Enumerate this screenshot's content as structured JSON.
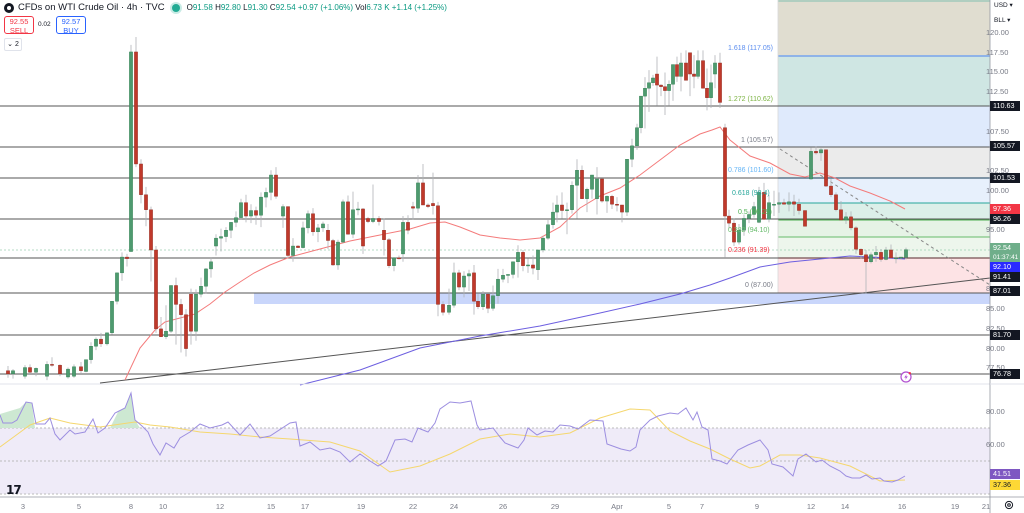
{
  "header": {
    "title": "CFDs on WTI Crude Oil · 4h · TVC",
    "open_label": "O",
    "open": "91.58",
    "high_label": "H",
    "high": "92.80",
    "low_label": "L",
    "low": "91.30",
    "close_label": "C",
    "close": "92.54",
    "change": "+0.97 (+1.06%)",
    "volume_label": "Vol",
    "volume": "6.73 K",
    "volume_change": "+1.14 (+1.25%)"
  },
  "trade": {
    "sell_price": "92.55",
    "sell_label": "SELL",
    "spread": "0.02",
    "buy_price": "92.57",
    "buy_label": "BUY",
    "indicators_collapse": "⌄ 2"
  },
  "price_axis": {
    "currency": "USD ▾",
    "unit": "BLL ▾",
    "ticks": [
      "120.00",
      "117.50",
      "115.00",
      "112.50",
      "107.50",
      "102.50",
      "100.00",
      "95.00",
      "87.50",
      "85.00",
      "82.50",
      "80.00",
      "77.50"
    ],
    "tags": [
      {
        "value": "110.63",
        "bg": "#131722"
      },
      {
        "value": "105.57",
        "bg": "#131722"
      },
      {
        "value": "101.53",
        "bg": "#131722"
      },
      {
        "value": "97.36",
        "bg": "#f23645"
      },
      {
        "value": "96.26",
        "bg": "#131722"
      },
      {
        "value": "92.54",
        "bg": "#6fae8a",
        "countdown": "01:37:41"
      },
      {
        "value": "92.10",
        "bg": "#2a2aff"
      },
      {
        "value": "91.41",
        "bg": "#131722"
      },
      {
        "value": "87.01",
        "bg": "#131722"
      },
      {
        "value": "81.70",
        "bg": "#131722"
      },
      {
        "value": "76.78",
        "bg": "#131722"
      }
    ]
  },
  "rsi_axis": {
    "ticks": [
      "80.00",
      "60.00"
    ],
    "rsi_value": "41.51",
    "rsi_color": "#7e57c2",
    "ma_value": "37.36",
    "ma_color": "#fdd835"
  },
  "time_axis": {
    "labels": [
      "3",
      "5",
      "8",
      "10",
      "12",
      "15",
      "17",
      "19",
      "22",
      "24",
      "26",
      "29",
      "Apr",
      "5",
      "7",
      "9",
      "12",
      "14",
      "16",
      "19",
      "21"
    ]
  },
  "fibonacci": [
    {
      "level": "1.618 (117.05)",
      "color": "#5b8def"
    },
    {
      "level": "1.272 (110.62)",
      "color": "#7cb342"
    },
    {
      "level": "1 (105.57)",
      "color": "#787b86"
    },
    {
      "level": "0.786 (101.60)",
      "color": "#64b5f6"
    },
    {
      "level": "0.618 (98.4)",
      "color": "#26a69a"
    },
    {
      "level": "0.5 (96.29)",
      "color": "#4caf50"
    },
    {
      "level": "0.382 (94.10)",
      "color": "#66bb6a"
    },
    {
      "level": "0.236 (91.39)",
      "color": "#f23645"
    },
    {
      "level": "0 (87.00)",
      "color": "#787b86"
    }
  ],
  "chart_data": {
    "type": "candlestick",
    "title": "CFDs on WTI Crude Oil · 4h · TVC",
    "ylabel": "USD / BLL",
    "ylim": [
      75,
      121
    ],
    "horizontal_levels": [
      110.63,
      105.57,
      101.53,
      96.26,
      91.41,
      87.01,
      81.7,
      76.78
    ],
    "ma_values": {
      "ma_red_last": 97.36,
      "ma_blue_last": 92.1
    },
    "last_price": 92.54,
    "rsi": {
      "last": 41.51,
      "ma_last": 37.36,
      "bands": [
        30,
        50,
        70
      ]
    }
  },
  "colors": {
    "up": "#4e9a6f",
    "down": "#c0392b",
    "ma_red": "#f47b7b",
    "ma_blue": "#6d5fe0",
    "support_zone": "#c9d6fb",
    "rsi_line": "#9c8ee0",
    "rsi_ma": "#f5d76e"
  }
}
